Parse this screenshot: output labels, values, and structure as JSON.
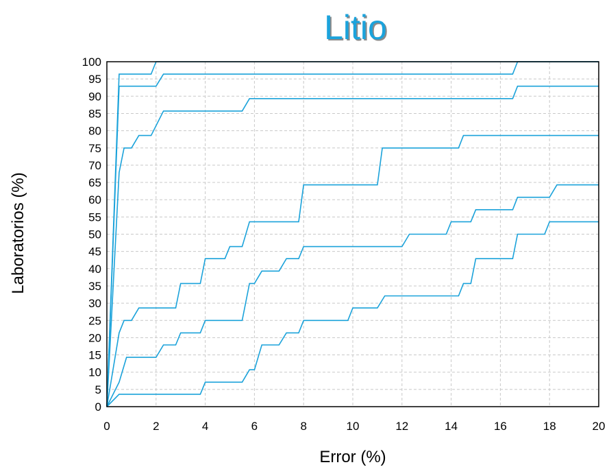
{
  "chart_data": {
    "type": "line",
    "title": "Litio",
    "xlabel": "Error (%)",
    "ylabel": "Laboratorios (%)",
    "xlim": [
      0,
      20
    ],
    "ylim": [
      0,
      100
    ],
    "xticks": [
      0,
      2,
      4,
      6,
      8,
      10,
      12,
      14,
      16,
      18,
      20
    ],
    "yticks": [
      0,
      5,
      10,
      15,
      20,
      25,
      30,
      35,
      40,
      45,
      50,
      55,
      60,
      65,
      70,
      75,
      80,
      85,
      90,
      95,
      100
    ],
    "grid": true,
    "color": "#1aa2da",
    "title_color": "#1ba3dc",
    "series": [
      {
        "points": [
          [
            0,
            0
          ],
          [
            0.5,
            96.4
          ],
          [
            1.8,
            96.4
          ],
          [
            2.0,
            100
          ],
          [
            20,
            100
          ]
        ]
      },
      {
        "points": [
          [
            0,
            0
          ],
          [
            0.5,
            92.9
          ],
          [
            2.0,
            92.9
          ],
          [
            2.3,
            96.4
          ],
          [
            16.5,
            96.4
          ],
          [
            16.7,
            100
          ],
          [
            20,
            100
          ]
        ]
      },
      {
        "points": [
          [
            0,
            0
          ],
          [
            0.5,
            67.9
          ],
          [
            0.7,
            75
          ],
          [
            1.0,
            75
          ],
          [
            1.3,
            78.6
          ],
          [
            1.8,
            78.6
          ],
          [
            2.3,
            85.7
          ],
          [
            5.5,
            85.7
          ],
          [
            5.8,
            89.3
          ],
          [
            16.5,
            89.3
          ],
          [
            16.7,
            92.9
          ],
          [
            20,
            92.9
          ]
        ]
      },
      {
        "points": [
          [
            0,
            0
          ],
          [
            0.5,
            21.4
          ],
          [
            0.7,
            25
          ],
          [
            1.0,
            25
          ],
          [
            1.3,
            28.6
          ],
          [
            2.8,
            28.6
          ],
          [
            3.0,
            35.7
          ],
          [
            3.8,
            35.7
          ],
          [
            4.0,
            42.9
          ],
          [
            4.8,
            42.9
          ],
          [
            5.0,
            46.4
          ],
          [
            5.5,
            46.4
          ],
          [
            5.8,
            53.6
          ],
          [
            7.8,
            53.6
          ],
          [
            8.0,
            64.3
          ],
          [
            11.0,
            64.3
          ],
          [
            11.2,
            75
          ],
          [
            14.3,
            75
          ],
          [
            14.5,
            78.6
          ],
          [
            20,
            78.6
          ]
        ]
      },
      {
        "points": [
          [
            0,
            0
          ],
          [
            0.5,
            7.1
          ],
          [
            0.8,
            14.3
          ],
          [
            2.0,
            14.3
          ],
          [
            2.3,
            17.9
          ],
          [
            2.8,
            17.9
          ],
          [
            3.0,
            21.4
          ],
          [
            3.8,
            21.4
          ],
          [
            4.0,
            25
          ],
          [
            5.5,
            25
          ],
          [
            5.8,
            35.7
          ],
          [
            6.0,
            35.7
          ],
          [
            6.3,
            39.3
          ],
          [
            7.0,
            39.3
          ],
          [
            7.3,
            42.9
          ],
          [
            7.8,
            42.9
          ],
          [
            8.0,
            46.4
          ],
          [
            12.0,
            46.4
          ],
          [
            12.3,
            50
          ],
          [
            13.8,
            50
          ],
          [
            14.0,
            53.6
          ],
          [
            14.8,
            53.6
          ],
          [
            15.0,
            57.1
          ],
          [
            16.5,
            57.1
          ],
          [
            16.7,
            60.7
          ],
          [
            18.0,
            60.7
          ],
          [
            18.3,
            64.3
          ],
          [
            20,
            64.3
          ]
        ]
      },
      {
        "points": [
          [
            0,
            0
          ],
          [
            0.5,
            3.6
          ],
          [
            3.8,
            3.6
          ],
          [
            4.0,
            7.1
          ],
          [
            5.5,
            7.1
          ],
          [
            5.8,
            10.7
          ],
          [
            6.0,
            10.7
          ],
          [
            6.3,
            17.9
          ],
          [
            7.0,
            17.9
          ],
          [
            7.3,
            21.4
          ],
          [
            7.8,
            21.4
          ],
          [
            8.0,
            25
          ],
          [
            9.8,
            25
          ],
          [
            10.0,
            28.6
          ],
          [
            11.0,
            28.6
          ],
          [
            11.3,
            32.1
          ],
          [
            14.3,
            32.1
          ],
          [
            14.5,
            35.7
          ],
          [
            14.8,
            35.7
          ],
          [
            15.0,
            42.9
          ],
          [
            16.5,
            42.9
          ],
          [
            16.7,
            50
          ],
          [
            17.8,
            50
          ],
          [
            18.0,
            53.6
          ],
          [
            20,
            53.6
          ]
        ]
      }
    ]
  }
}
